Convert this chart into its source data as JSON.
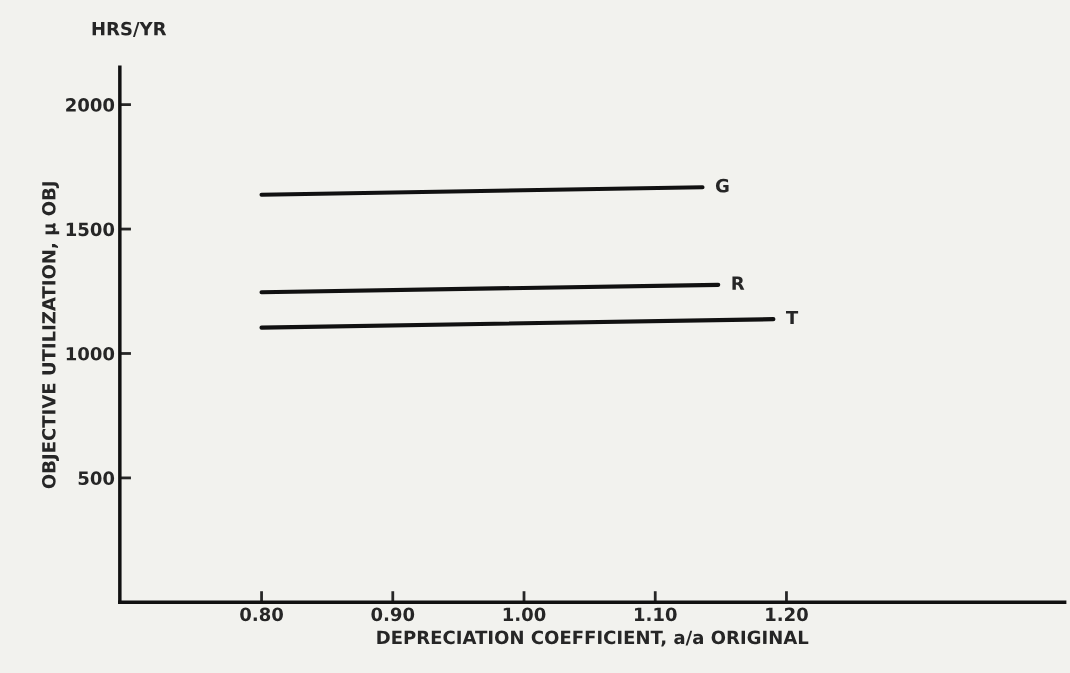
{
  "chart_data": {
    "type": "line",
    "xlabel": "DEPRECIATION COEFFICIENT, a/a ORIGINAL",
    "ylabel": "OBJECTIVE UTILIZATION, μ OBJ",
    "annotations": [
      "HRS/YR"
    ],
    "xlim": [
      0.692,
      1.412
    ],
    "xticks": [
      {
        "value": 0.8,
        "label": "0.80"
      },
      {
        "value": 0.9,
        "label": "0.90"
      },
      {
        "value": 1.0,
        "label": "1.00"
      },
      {
        "value": 1.1,
        "label": "1.10"
      },
      {
        "value": 1.2,
        "label": "1.20"
      }
    ],
    "ylim": [
      0,
      2150
    ],
    "yticks": [
      500,
      1000,
      1500,
      2000
    ],
    "grid": false,
    "legend": false,
    "marker": "none",
    "line_style": "solid",
    "series": [
      {
        "name": "G",
        "color": "#111111",
        "x": [
          0.8,
          1.136
        ],
        "values": [
          1638,
          1668
        ]
      },
      {
        "name": "R",
        "color": "#111111",
        "x": [
          0.8,
          1.148
        ],
        "values": [
          1246,
          1276
        ]
      },
      {
        "name": "T",
        "color": "#111111",
        "x": [
          0.8,
          1.19
        ],
        "values": [
          1104,
          1138
        ]
      }
    ]
  }
}
